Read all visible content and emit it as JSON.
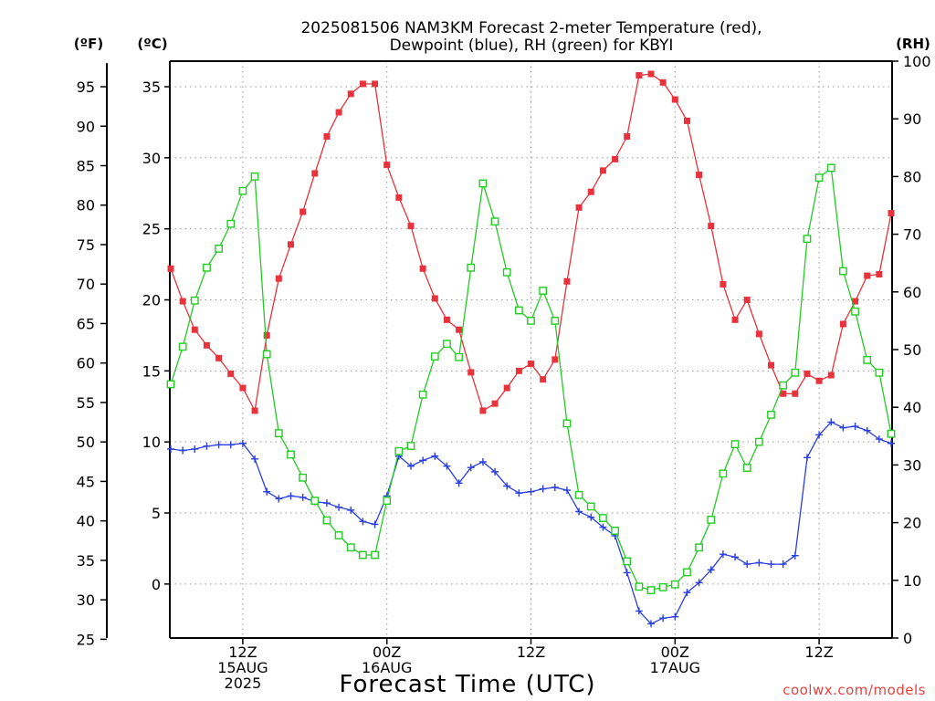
{
  "title_line1": "2025081506 NAM3KM Forecast 2-meter Temperature (red),",
  "title_line2": "Dewpoint (blue), RH (green) for KBYI",
  "unit_f": "(ºF)",
  "unit_c": "(ºC)",
  "unit_rh": "(RH)",
  "xlabel": "Forecast Time (UTC)",
  "credit": "coolwx.com/models",
  "chart_data": {
    "type": "line",
    "x_hours_from_1506Z": [
      0,
      1,
      2,
      3,
      4,
      5,
      6,
      7,
      8,
      9,
      10,
      11,
      12,
      13,
      14,
      15,
      16,
      17,
      18,
      19,
      20,
      21,
      22,
      23,
      24,
      25,
      26,
      27,
      28,
      29,
      30,
      31,
      32,
      33,
      34,
      35,
      36,
      37,
      38,
      39,
      40,
      41,
      42,
      43,
      44,
      45,
      46,
      47,
      48,
      49,
      50,
      51,
      52,
      53,
      54,
      55,
      56,
      57,
      58,
      59,
      60
    ],
    "x_range_hours": [
      0,
      60
    ],
    "x_tick_hours": [
      6,
      18,
      30,
      42,
      54
    ],
    "x_tick_labels": [
      [
        "12Z",
        "15AUG",
        "2025"
      ],
      [
        "00Z",
        "16AUG"
      ],
      [
        "12Z"
      ],
      [
        "00Z",
        "17AUG"
      ],
      [
        "12Z"
      ]
    ],
    "y_left_c": {
      "range": [
        -3.8,
        36.8
      ],
      "ticks": [
        0,
        5,
        10,
        15,
        20,
        25,
        30,
        35
      ]
    },
    "y_left_f": {
      "ticks": [
        25,
        30,
        35,
        40,
        45,
        50,
        55,
        60,
        65,
        70,
        75,
        80,
        85,
        90,
        95
      ]
    },
    "y_right_rh": {
      "range": [
        0,
        100
      ],
      "ticks": [
        0,
        10,
        20,
        30,
        40,
        50,
        60,
        70,
        80,
        90,
        100
      ]
    },
    "grid": true,
    "series": [
      {
        "name": "2-meter Temperature",
        "axis": "celsius",
        "color": "#e8323c",
        "marker": "filled-square",
        "values": [
          22.2,
          19.9,
          17.9,
          16.8,
          15.9,
          14.8,
          13.8,
          12.2,
          17.5,
          21.5,
          23.9,
          26.2,
          28.9,
          31.5,
          33.2,
          34.5,
          35.2,
          35.2,
          29.5,
          27.2,
          25.2,
          22.2,
          20.1,
          18.6,
          17.9,
          14.9,
          12.2,
          12.7,
          13.8,
          15.0,
          15.5,
          14.4,
          15.8,
          21.3,
          26.5,
          27.6,
          29.1,
          29.9,
          31.5,
          35.8,
          35.9,
          35.3,
          34.1,
          32.6,
          28.8,
          25.2,
          21.1,
          18.6,
          20.0,
          17.6,
          15.4,
          13.4,
          13.4,
          14.8,
          14.3,
          14.7,
          18.3,
          19.9,
          21.7,
          21.8,
          26.1
        ]
      },
      {
        "name": "Dewpoint",
        "axis": "celsius",
        "color": "#2a3fe0",
        "marker": "plus",
        "values": [
          9.5,
          9.4,
          9.5,
          9.7,
          9.8,
          9.8,
          9.9,
          8.8,
          6.5,
          6.0,
          6.2,
          6.1,
          5.8,
          5.7,
          5.4,
          5.2,
          4.4,
          4.2,
          6.2,
          9.0,
          8.3,
          8.7,
          9.0,
          8.3,
          7.1,
          8.2,
          8.6,
          7.9,
          6.9,
          6.4,
          6.5,
          6.7,
          6.8,
          6.6,
          5.1,
          4.7,
          4.0,
          3.4,
          0.8,
          -1.9,
          -2.8,
          -2.4,
          -2.3,
          -0.6,
          0.1,
          1.0,
          2.1,
          1.9,
          1.4,
          1.5,
          1.4,
          1.4,
          2.0,
          8.9,
          10.5,
          11.4,
          11.0,
          11.1,
          10.8,
          10.2,
          9.9
        ]
      },
      {
        "name": "RH",
        "axis": "rh",
        "color": "#22cc22",
        "marker": "open-square",
        "values": [
          44.0,
          50.5,
          58.5,
          64.2,
          67.5,
          71.8,
          77.5,
          80.0,
          49.2,
          35.5,
          31.8,
          27.8,
          23.8,
          20.4,
          17.8,
          15.7,
          14.4,
          14.4,
          23.8,
          32.4,
          33.3,
          42.2,
          48.8,
          51.0,
          48.7,
          64.2,
          78.8,
          72.2,
          63.4,
          56.8,
          55.0,
          60.2,
          55.0,
          37.2,
          24.8,
          22.8,
          20.8,
          18.6,
          13.3,
          8.9,
          8.3,
          8.8,
          9.3,
          11.4,
          15.7,
          20.5,
          28.5,
          33.6,
          29.5,
          34.0,
          38.7,
          43.8,
          46.0,
          69.2,
          79.8,
          81.5,
          63.6,
          56.6,
          48.2,
          46.0,
          35.4
        ]
      }
    ]
  }
}
